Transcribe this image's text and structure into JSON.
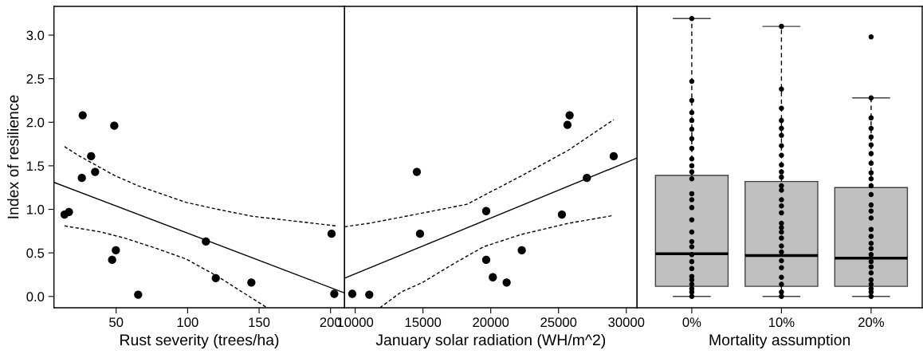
{
  "chart_data": [
    {
      "type": "scatter",
      "xlabel": "Rust severity (trees/ha)",
      "ylabel": "Index of resilience",
      "xlim": [
        6.5,
        209.8
      ],
      "xticks": [
        50,
        100,
        150,
        200
      ],
      "ylim": [
        -0.13,
        3.33
      ],
      "yticks": [
        {
          "value": 0,
          "label": "0.0"
        },
        {
          "value": 0.5,
          "label": "0.5"
        },
        {
          "value": 1,
          "label": "1.0"
        },
        {
          "value": 1.5,
          "label": "1.5"
        },
        {
          "value": 2,
          "label": "2.0"
        },
        {
          "value": 2.5,
          "label": "2.5"
        },
        {
          "value": 3,
          "label": "3.0"
        }
      ],
      "grid": false,
      "x": [
        13.9,
        17.0,
        26.6,
        48.7,
        32.5,
        35.3,
        26.0,
        47.2,
        49.8,
        65.4,
        112.8,
        119.7,
        144.6,
        200.7,
        202.6
      ],
      "series": [
        {
          "marker": "circle",
          "color": "#000000",
          "values": [
            0.94,
            0.97,
            2.08,
            1.96,
            1.61,
            1.43,
            1.36,
            0.42,
            0.53,
            0.02,
            0.63,
            0.21,
            0.16,
            0.72,
            0.03
          ]
        },
        {
          "type": "line",
          "color": "#000000",
          "line_style": "solid",
          "x": [
            6.5,
            209.8
          ],
          "values": [
            1.31,
            0.04
          ]
        },
        {
          "type": "line",
          "color": "#000000",
          "line_style": "dashed",
          "x": [
            13.9,
            24.5,
            48.7,
            65.4,
            98.9,
            121,
            145.4,
            203.9
          ],
          "values": [
            1.72,
            1.61,
            1.39,
            1.27,
            1.08,
            1.0,
            0.92,
            0.81
          ]
        },
        {
          "type": "line",
          "color": "#000000",
          "line_style": "dashed",
          "x": [
            13.9,
            39.4,
            56,
            78.4,
            98.9,
            121,
            155.6
          ],
          "values": [
            0.81,
            0.74,
            0.67,
            0.55,
            0.43,
            0.23,
            -0.13
          ]
        }
      ]
    },
    {
      "type": "scatter",
      "xlabel": "January solar radiation (WH/m^2)",
      "xlim": [
        9216,
        30796
      ],
      "xticks": [
        10000,
        15000,
        20000,
        25000,
        30000
      ],
      "ylim": [
        -0.13,
        3.33
      ],
      "tick_labels": "x",
      "grid": false,
      "x": [
        9784,
        11039,
        14547,
        14782,
        19663,
        19663,
        20153,
        21172,
        22289,
        25249,
        25660,
        25817,
        27091,
        29071
      ],
      "series": [
        {
          "marker": "circle",
          "color": "#000000",
          "values": [
            0.03,
            0.02,
            1.43,
            0.72,
            0.98,
            0.42,
            0.22,
            0.16,
            0.53,
            0.94,
            1.97,
            2.08,
            1.36,
            1.61
          ]
        },
        {
          "type": "line",
          "color": "#000000",
          "line_style": "solid",
          "x": [
            9216,
            30796
          ],
          "values": [
            0.21,
            1.59
          ]
        },
        {
          "type": "line",
          "color": "#000000",
          "line_style": "dashed",
          "x": [
            9216,
            11039,
            15057,
            18291,
            19859,
            22211,
            25739,
            29071
          ],
          "values": [
            0.8,
            0.84,
            0.96,
            1.06,
            1.19,
            1.38,
            1.68,
            2.03
          ]
        },
        {
          "type": "line",
          "color": "#000000",
          "line_style": "dashed",
          "x": [
            11823,
            13391,
            14959,
            17311,
            19467,
            22211,
            25739,
            29071
          ],
          "values": [
            -0.13,
            0.05,
            0.16,
            0.38,
            0.57,
            0.71,
            0.84,
            0.93
          ]
        }
      ]
    },
    {
      "type": "box",
      "xlabel": "Mortality assumption",
      "categories": [
        "0%",
        "10%",
        "20%"
      ],
      "ylim": [
        -0.13,
        3.33
      ],
      "tick_labels": "x",
      "grid": false,
      "color": "#c0c0c0",
      "boxes": [
        {
          "low": 0.0,
          "q1": 0.116,
          "median": 0.49,
          "q3": 1.39,
          "high": 3.19
        },
        {
          "low": 0.0,
          "q1": 0.116,
          "median": 0.47,
          "q3": 1.32,
          "high": 3.1
        },
        {
          "low": 0.0,
          "q1": 0.116,
          "median": 0.44,
          "q3": 1.25,
          "high": 2.28
        }
      ],
      "series": [
        {
          "type": "scatter",
          "color": "#000000",
          "marker": "circle",
          "x": [
            "0%",
            "0%",
            "0%",
            "0%",
            "0%",
            "0%",
            "0%",
            "0%",
            "0%",
            "0%",
            "0%",
            "0%",
            "0%",
            "0%",
            "0%",
            "0%",
            "0%",
            "0%",
            "0%",
            "0%",
            "0%",
            "0%",
            "0%",
            "0%",
            "0%",
            "0%",
            "0%",
            "0%"
          ],
          "values": [
            3.19,
            2.47,
            2.25,
            2.11,
            2.02,
            1.92,
            1.81,
            1.7,
            1.58,
            1.5,
            1.43,
            1.35,
            1.18,
            1.11,
            1.02,
            0.88,
            0.74,
            0.63,
            0.57,
            0.48,
            0.4,
            0.32,
            0.23,
            0.19,
            0.14,
            0.09,
            0.05,
            0.0
          ]
        },
        {
          "type": "scatter",
          "color": "#000000",
          "marker": "circle",
          "x": [
            "10%",
            "10%",
            "10%",
            "10%",
            "10%",
            "10%",
            "10%",
            "10%",
            "10%",
            "10%",
            "10%",
            "10%",
            "10%",
            "10%",
            "10%",
            "10%",
            "10%",
            "10%",
            "10%",
            "10%",
            "10%",
            "10%",
            "10%",
            "10%",
            "10%",
            "10%",
            "10%",
            "10%"
          ],
          "values": [
            3.1,
            2.38,
            2.16,
            2.02,
            1.93,
            1.85,
            1.73,
            1.62,
            1.51,
            1.43,
            1.37,
            1.27,
            1.22,
            1.11,
            1.04,
            0.96,
            0.84,
            0.79,
            0.74,
            0.67,
            0.58,
            0.51,
            0.41,
            0.33,
            0.22,
            0.14,
            0.05,
            0.0
          ]
        },
        {
          "type": "scatter",
          "color": "#000000",
          "marker": "circle",
          "x": [
            "20%",
            "20%",
            "20%",
            "20%",
            "20%",
            "20%",
            "20%",
            "20%",
            "20%",
            "20%",
            "20%",
            "20%",
            "20%",
            "20%",
            "20%",
            "20%",
            "20%",
            "20%",
            "20%",
            "20%",
            "20%",
            "20%",
            "20%",
            "20%",
            "20%",
            "20%",
            "20%",
            "20%"
          ],
          "values": [
            2.98,
            2.28,
            2.05,
            1.93,
            1.83,
            1.74,
            1.64,
            1.53,
            1.42,
            1.35,
            1.27,
            1.17,
            1.05,
            0.98,
            0.9,
            0.77,
            0.69,
            0.61,
            0.55,
            0.48,
            0.4,
            0.34,
            0.27,
            0.19,
            0.14,
            0.09,
            0.05,
            0.0
          ]
        }
      ]
    }
  ]
}
